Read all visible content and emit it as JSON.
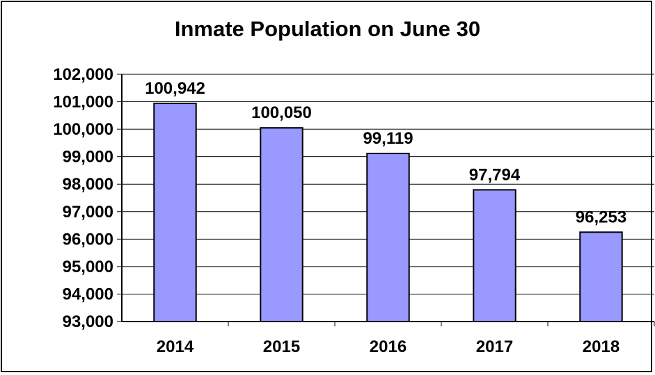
{
  "chart_data": {
    "type": "bar",
    "title": "Inmate Population on June 30",
    "categories": [
      "2014",
      "2015",
      "2016",
      "2017",
      "2018"
    ],
    "values": [
      100942,
      100050,
      99119,
      97794,
      96253
    ],
    "value_labels": [
      "100,942",
      "100,050",
      "99,119",
      "97,794",
      "96,253"
    ],
    "ylim": [
      93000,
      102000
    ],
    "y_ticks": [
      93000,
      94000,
      95000,
      96000,
      97000,
      98000,
      99000,
      100000,
      101000,
      102000
    ],
    "y_tick_labels": [
      "93,000",
      "94,000",
      "95,000",
      "96,000",
      "97,000",
      "98,000",
      "99,000",
      "100,000",
      "101,000",
      "102,000"
    ],
    "grid": true,
    "bar_color": "#9999ff",
    "xlabel": "",
    "ylabel": ""
  }
}
